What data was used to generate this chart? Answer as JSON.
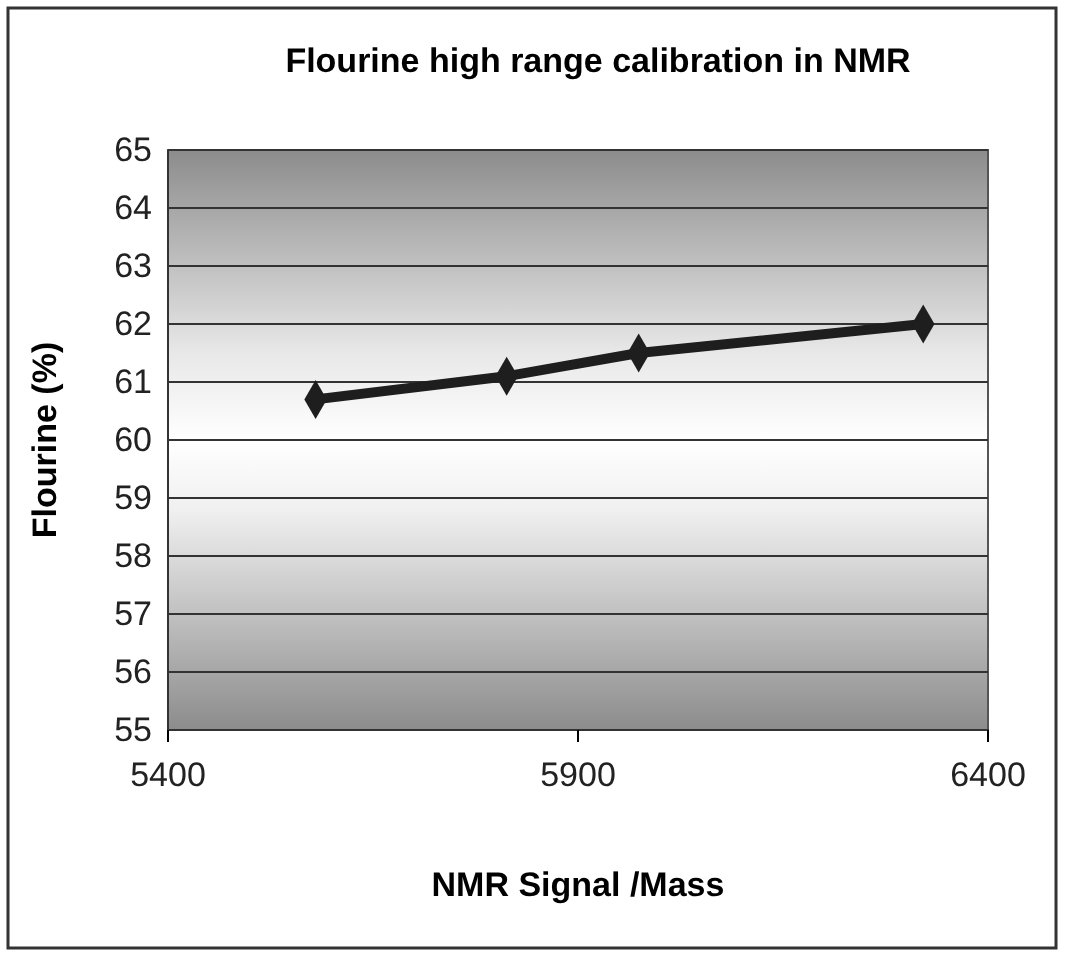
{
  "chart_data": {
    "type": "line",
    "title": "Flourine high range calibration in NMR",
    "xlabel": "NMR Signal /Mass",
    "ylabel": "Flourine (%)",
    "x": [
      5580,
      5813,
      5974,
      6321
    ],
    "series": [
      {
        "color": "#1e1e1e",
        "values": [
          60.7,
          61.1,
          61.5,
          62.0
        ]
      }
    ],
    "xlim": [
      5400,
      6400
    ],
    "xticks": [
      5400,
      5900,
      6400
    ],
    "ylim": [
      55,
      65
    ],
    "yticks": [
      55,
      56,
      57,
      58,
      59,
      60,
      61,
      62,
      63,
      64,
      65
    ],
    "grid": "y",
    "marker": "diamond",
    "line_style": "solid"
  }
}
